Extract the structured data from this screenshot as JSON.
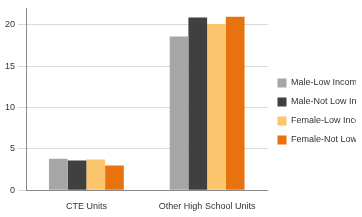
{
  "chart_data": {
    "type": "bar",
    "categories": [
      "CTE Units",
      "Other High School Units"
    ],
    "series": [
      {
        "name": "Male-Low Income",
        "color": "#a6a6a6",
        "values": [
          3.8,
          18.6
        ]
      },
      {
        "name": "Male-Not Low Income",
        "color": "#404040",
        "values": [
          3.6,
          20.9
        ]
      },
      {
        "name": "Female-Low Income",
        "color": "#fbc56e",
        "values": [
          3.7,
          20.1
        ]
      },
      {
        "name": "Female-Not Low Income",
        "color": "#e8730e",
        "values": [
          3.0,
          21.0
        ]
      }
    ],
    "ylim": [
      0,
      22
    ],
    "yticks": [
      0,
      5,
      10,
      15,
      20
    ],
    "grid": true,
    "legend": "right"
  }
}
